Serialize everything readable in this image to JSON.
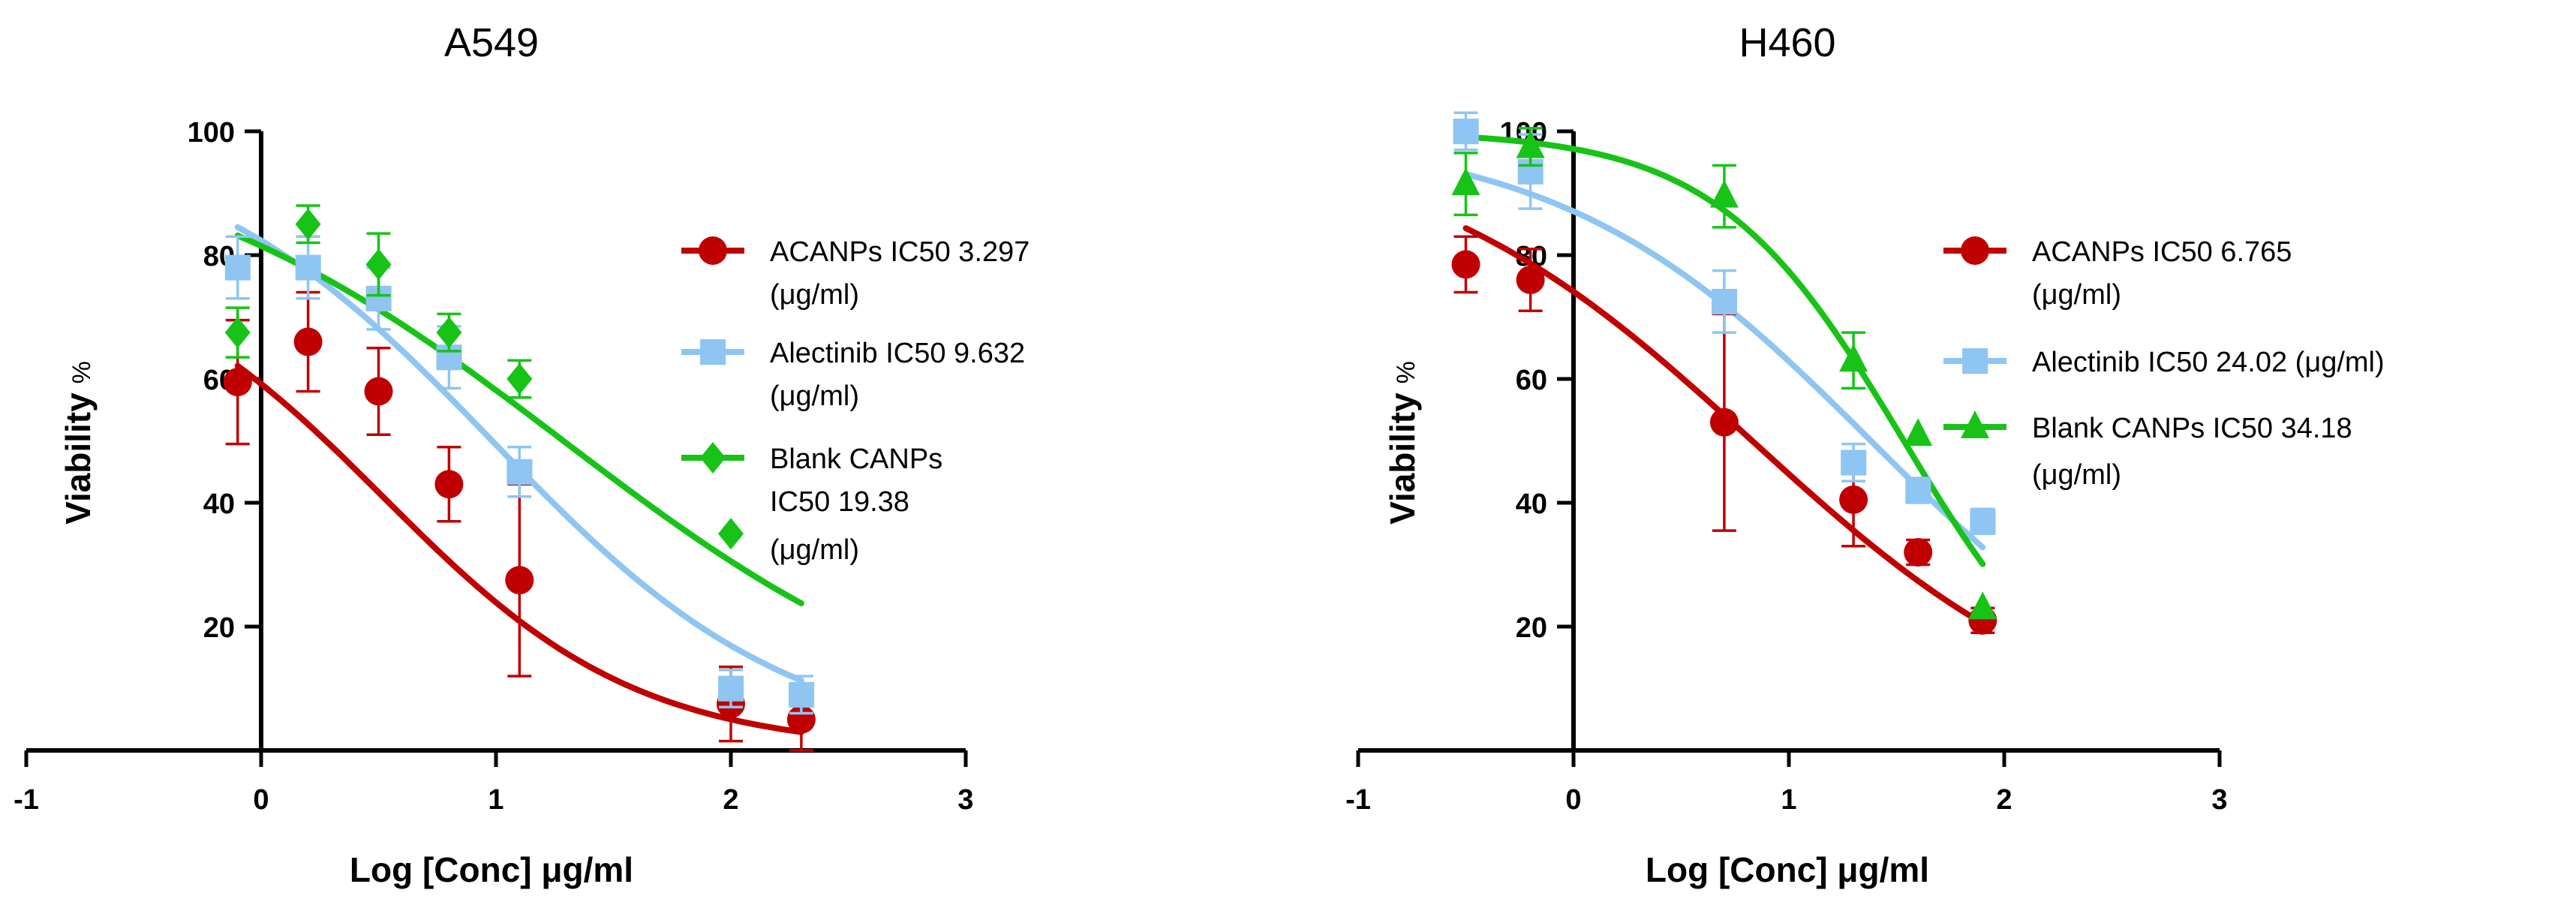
{
  "colors": {
    "acanps": "#c00000",
    "alectinib": "#8ec5f2",
    "blank": "#17c317",
    "axis": "#000000"
  },
  "chart_data": [
    {
      "type": "scatter",
      "title": "A549",
      "xlabel": "Log [Conc] μg/ml",
      "ylabel_main": "Viability",
      "ylabel_unit": "%",
      "xlim": [
        -1,
        3
      ],
      "ylim": [
        0,
        100
      ],
      "x_ticks": [
        -1,
        0,
        1,
        2,
        3
      ],
      "x_tick_labels": [
        "-1",
        "0",
        "1",
        "2",
        "3"
      ],
      "y_ticks": [
        20,
        40,
        60,
        80,
        100
      ],
      "y_tick_labels": [
        "20",
        "40",
        "60",
        "80",
        "100"
      ],
      "series": [
        {
          "key": "acanps",
          "marker": "circle",
          "legend": [
            "ACANPs IC50 3.297",
            "(μg/ml)"
          ],
          "x": [
            -0.1,
            0.2,
            0.5,
            0.8,
            1.1,
            2.0,
            2.3
          ],
          "y": [
            59.5,
            66,
            58,
            43,
            27.5,
            7.5,
            5
          ],
          "err": [
            10,
            8,
            7,
            6,
            15.5,
            6,
            5
          ],
          "fit": {
            "top": 82,
            "bottom": 0,
            "logic50": 0.518,
            "hill": 0.8,
            "xrange": [
              -0.1,
              2.3
            ]
          }
        },
        {
          "key": "alectinib",
          "marker": "square",
          "legend": [
            "Alectinib IC50 9.632",
            "(μg/ml)"
          ],
          "x": [
            -0.1,
            0.2,
            0.5,
            0.8,
            1.1,
            2.0,
            2.3
          ],
          "y": [
            78,
            78,
            73,
            63.5,
            45,
            10,
            9
          ],
          "err": [
            5,
            5,
            5,
            5,
            4,
            3,
            3
          ],
          "fit": {
            "top": 100,
            "bottom": 0,
            "logic50": 0.984,
            "hill": 0.68,
            "xrange": [
              -0.1,
              2.3
            ]
          }
        },
        {
          "key": "blank",
          "marker": "diamond",
          "legend": [
            "Blank CANPs",
            "IC50 19.38",
            "(μg/ml)"
          ],
          "x": [
            -0.1,
            0.2,
            0.5,
            0.8,
            1.1,
            2.0
          ],
          "y": [
            67.5,
            85,
            78.5,
            67.5,
            60,
            35
          ],
          "err": [
            4,
            3,
            5,
            3,
            3,
            0
          ],
          "fit": {
            "top": 100,
            "bottom": 0,
            "logic50": 1.287,
            "hill": 0.5,
            "xrange": [
              -0.1,
              2.3
            ]
          }
        }
      ]
    },
    {
      "type": "scatter",
      "title": "H460",
      "xlabel": "Log [Conc] μg/ml",
      "ylabel_main": "Viability",
      "ylabel_unit": "%",
      "xlim": [
        -1,
        3
      ],
      "ylim": [
        0,
        100
      ],
      "x_ticks": [
        -1,
        0,
        1,
        2,
        3
      ],
      "x_tick_labels": [
        "-1",
        "0",
        "1",
        "2",
        "3"
      ],
      "y_ticks": [
        20,
        40,
        60,
        80,
        100
      ],
      "y_tick_labels": [
        "20",
        "40",
        "60",
        "80",
        "100"
      ],
      "series": [
        {
          "key": "acanps",
          "marker": "circle",
          "legend": [
            "ACANPs IC50 6.765",
            "(μg/ml)"
          ],
          "x": [
            -0.5,
            -0.2,
            0.7,
            1.3,
            1.6,
            1.9
          ],
          "y": [
            78.5,
            76,
            53,
            40.5,
            32,
            21
          ],
          "err": [
            4.5,
            5,
            17.5,
            7.5,
            2,
            2
          ],
          "fit": {
            "top": 100,
            "bottom": 0,
            "logic50": 0.83,
            "hill": 0.55,
            "xrange": [
              -0.5,
              1.9
            ]
          }
        },
        {
          "key": "alectinib",
          "marker": "square",
          "legend": [
            "Alectinib IC50 24.02 (μg/ml)"
          ],
          "x": [
            -0.5,
            -0.2,
            0.7,
            1.3,
            1.6,
            1.9
          ],
          "y": [
            100,
            93.5,
            72.5,
            46.5,
            42,
            37
          ],
          "err": [
            3,
            6,
            5,
            3,
            2,
            2
          ],
          "fit": {
            "top": 100,
            "bottom": 0,
            "logic50": 1.381,
            "hill": 0.6,
            "xrange": [
              -0.5,
              1.9
            ]
          }
        },
        {
          "key": "blank",
          "marker": "triangle",
          "legend": [
            "Blank CANPs IC50 34.18",
            "(μg/ml)"
          ],
          "x": [
            -0.5,
            -0.2,
            0.7,
            1.3,
            1.6,
            1.9
          ],
          "y": [
            91.5,
            97.5,
            89.5,
            63,
            51,
            23
          ],
          "err": [
            5,
            3,
            5,
            4.5,
            0,
            0
          ],
          "fit": {
            "top": 100,
            "bottom": 0,
            "logic50": 1.534,
            "hill": 1.0,
            "xrange": [
              -0.5,
              1.9
            ]
          }
        }
      ]
    }
  ]
}
